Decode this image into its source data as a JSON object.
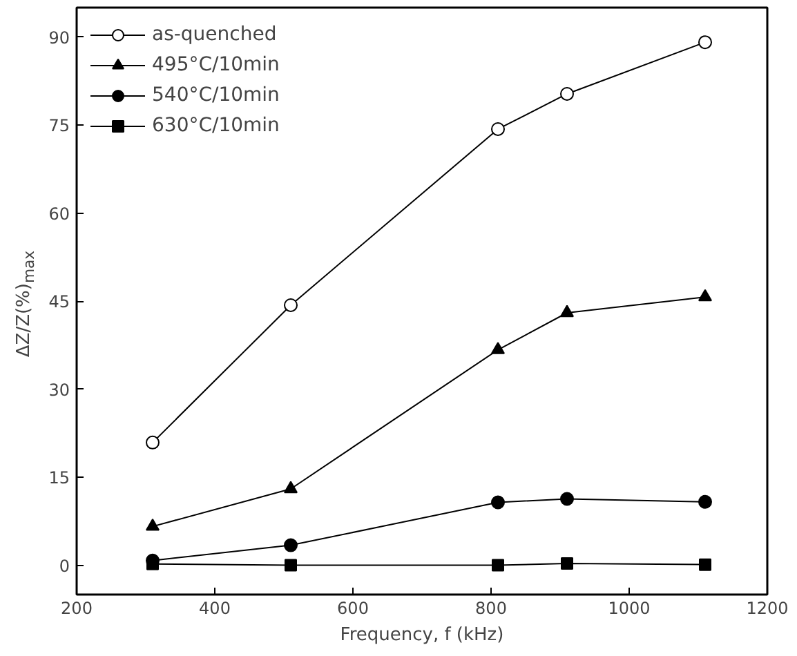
{
  "chart_data": {
    "type": "line",
    "xlabel": "Frequency, f (kHz)",
    "ylabel": "ΔZ/Z(%)$_{max}$",
    "x": [
      310,
      510,
      810,
      910,
      1110
    ],
    "series": [
      {
        "name": "as-quenched",
        "color": "#000000",
        "marker": "circle_open",
        "values": [
          20.9,
          44.3,
          74.3,
          80.3,
          89.1
        ]
      },
      {
        "name": "495°C/10min",
        "color": "#000000",
        "marker": "triangle",
        "values": [
          6.6,
          13.0,
          36.7,
          43.0,
          45.7
        ]
      },
      {
        "name": "540°C/10min",
        "color": "#000000",
        "marker": "circle",
        "values": [
          0.8,
          3.4,
          10.7,
          11.3,
          10.8
        ]
      },
      {
        "name": "630°C/10min",
        "color": "#000000",
        "marker": "square",
        "values": [
          0.2,
          0.0,
          0.0,
          0.3,
          0.1
        ]
      }
    ],
    "xlim": [
      200,
      1200
    ],
    "xticks": [
      200,
      400,
      600,
      800,
      1000,
      1200
    ],
    "ylim": [
      -5,
      95
    ],
    "yticks": [
      0,
      15,
      30,
      45,
      60,
      75,
      90
    ],
    "grid": false,
    "legend": "top left",
    "line_style": "solid"
  }
}
